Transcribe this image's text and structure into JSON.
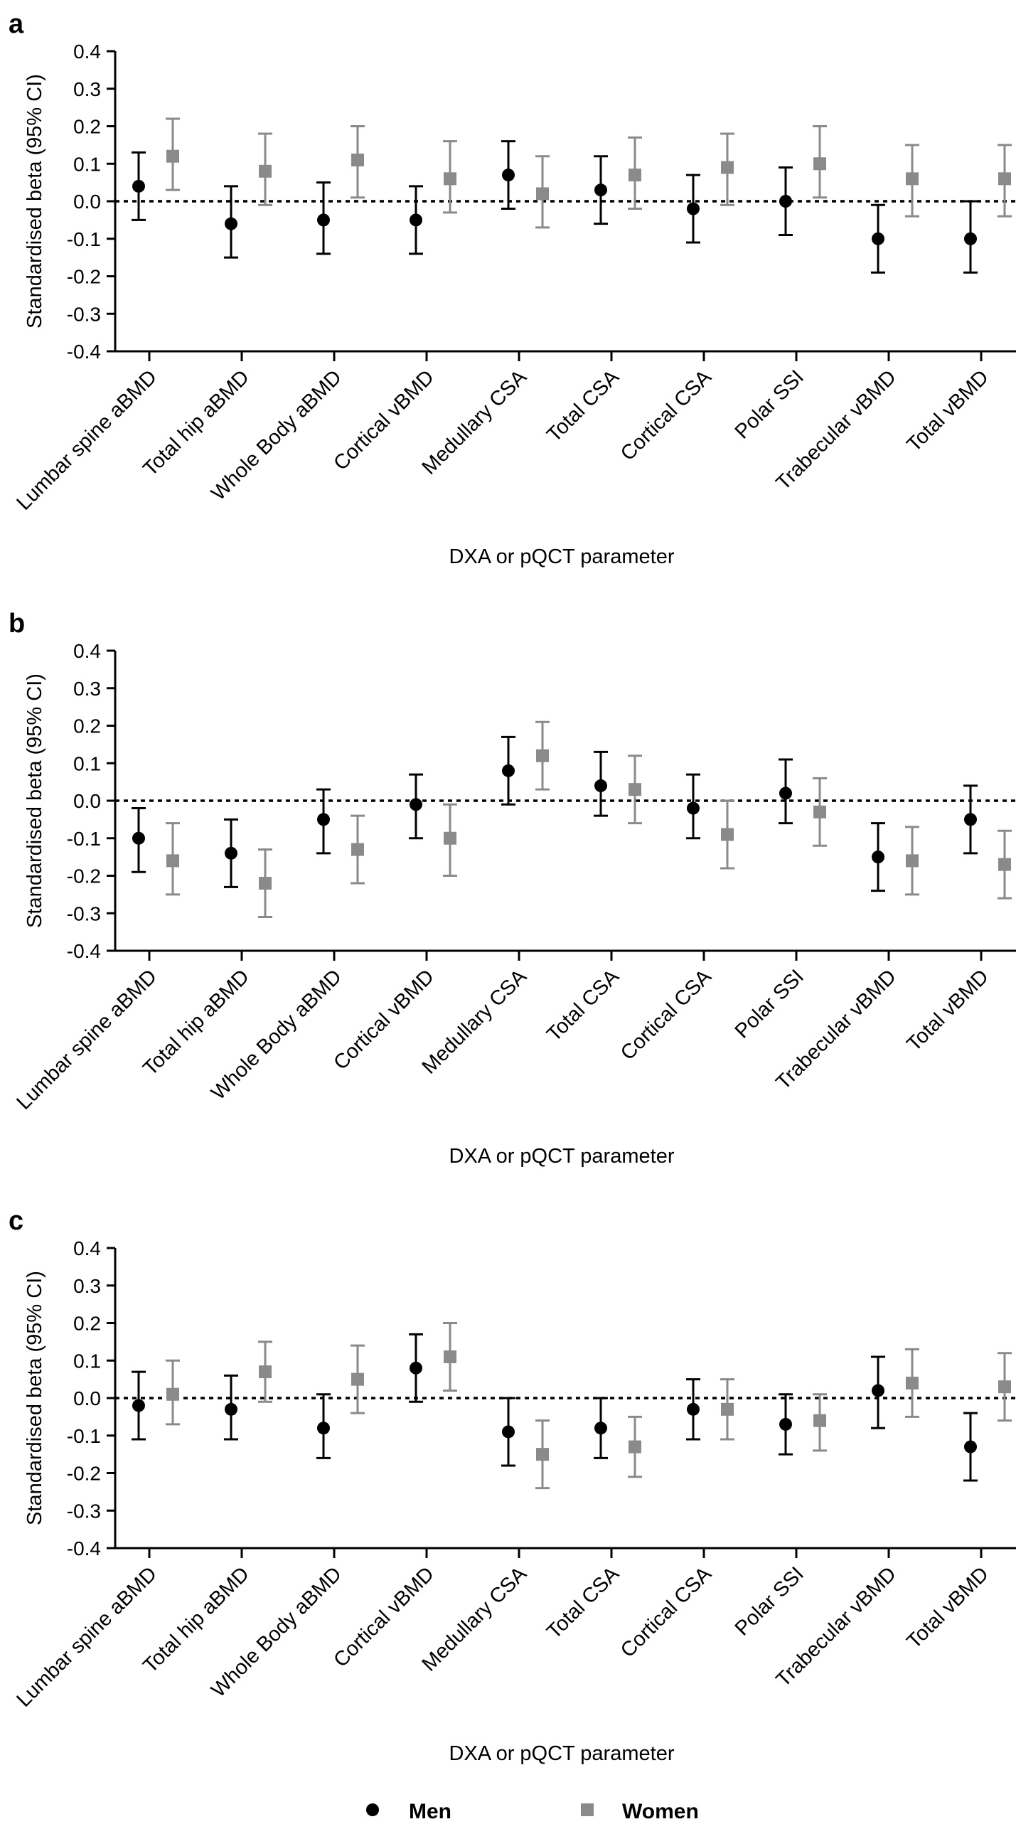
{
  "figure": {
    "legend": [
      {
        "label": "Men",
        "marker": "circle",
        "color": "#000000"
      },
      {
        "label": "Women",
        "marker": "square",
        "color": "#8a8a8a"
      }
    ]
  },
  "chart_data": [
    {
      "panel_label": "a",
      "type": "scatter",
      "xlabel": "DXA or pQCT parameter",
      "ylabel": "Standardised beta (95% CI)",
      "ylim": [
        -0.4,
        0.4
      ],
      "yticks": [
        "0.4",
        "0.3",
        "0.2",
        "0.1",
        "0.0",
        "-0.1",
        "-0.2",
        "-0.3",
        "-0.4"
      ],
      "reference_line": 0.0,
      "categories": [
        "Lumbar spine aBMD",
        "Total hip aBMD",
        "Whole Body aBMD",
        "Cortical vBMD",
        "Medullary CSA",
        "Total CSA",
        "Cortical CSA",
        "Polar SSI",
        "Trabecular vBMD",
        "Total vBMD"
      ],
      "series": [
        {
          "name": "Men",
          "color": "#000000",
          "marker": "circle",
          "values": [
            0.04,
            -0.06,
            -0.05,
            -0.05,
            0.07,
            0.03,
            -0.02,
            0.0,
            -0.1,
            -0.1
          ],
          "ci_low": [
            -0.05,
            -0.15,
            -0.14,
            -0.14,
            -0.02,
            -0.06,
            -0.11,
            -0.09,
            -0.19,
            -0.19
          ],
          "ci_high": [
            0.13,
            0.04,
            0.05,
            0.04,
            0.16,
            0.12,
            0.07,
            0.09,
            -0.01,
            0.0
          ]
        },
        {
          "name": "Women",
          "color": "#8a8a8a",
          "marker": "square",
          "values": [
            0.12,
            0.08,
            0.11,
            0.06,
            0.02,
            0.07,
            0.09,
            0.1,
            0.06,
            0.06
          ],
          "ci_low": [
            0.03,
            -0.01,
            0.01,
            -0.03,
            -0.07,
            -0.02,
            -0.01,
            0.01,
            -0.04,
            -0.04
          ],
          "ci_high": [
            0.22,
            0.18,
            0.2,
            0.16,
            0.12,
            0.17,
            0.18,
            0.2,
            0.15,
            0.15
          ]
        }
      ]
    },
    {
      "panel_label": "b",
      "type": "scatter",
      "xlabel": "DXA or pQCT parameter",
      "ylabel": "Standardised beta (95% CI)",
      "ylim": [
        -0.4,
        0.4
      ],
      "yticks": [
        "0.4",
        "0.3",
        "0.2",
        "0.1",
        "0.0",
        "-0.1",
        "-0.2",
        "-0.3",
        "-0.4"
      ],
      "reference_line": 0.0,
      "categories": [
        "Lumbar spine aBMD",
        "Total hip aBMD",
        "Whole Body aBMD",
        "Cortical vBMD",
        "Medullary CSA",
        "Total CSA",
        "Cortical CSA",
        "Polar SSI",
        "Trabecular vBMD",
        "Total vBMD"
      ],
      "series": [
        {
          "name": "Men",
          "color": "#000000",
          "marker": "circle",
          "values": [
            -0.1,
            -0.14,
            -0.05,
            -0.01,
            0.08,
            0.04,
            -0.02,
            0.02,
            -0.15,
            -0.05
          ],
          "ci_low": [
            -0.19,
            -0.23,
            -0.14,
            -0.1,
            -0.01,
            -0.04,
            -0.1,
            -0.06,
            -0.24,
            -0.14
          ],
          "ci_high": [
            -0.02,
            -0.05,
            0.03,
            0.07,
            0.17,
            0.13,
            0.07,
            0.11,
            -0.06,
            0.04
          ]
        },
        {
          "name": "Women",
          "color": "#8a8a8a",
          "marker": "square",
          "values": [
            -0.16,
            -0.22,
            -0.13,
            -0.1,
            0.12,
            0.03,
            -0.09,
            -0.03,
            -0.16,
            -0.17
          ],
          "ci_low": [
            -0.25,
            -0.31,
            -0.22,
            -0.2,
            0.03,
            -0.06,
            -0.18,
            -0.12,
            -0.25,
            -0.26
          ],
          "ci_high": [
            -0.06,
            -0.13,
            -0.04,
            -0.01,
            0.21,
            0.12,
            0.0,
            0.06,
            -0.07,
            -0.08
          ]
        }
      ]
    },
    {
      "panel_label": "c",
      "type": "scatter",
      "xlabel": "DXA or pQCT parameter",
      "ylabel": "Standardised beta (95% CI)",
      "ylim": [
        -0.4,
        0.4
      ],
      "yticks": [
        "0.4",
        "0.3",
        "0.2",
        "0.1",
        "0.0",
        "-0.1",
        "-0.2",
        "-0.3",
        "-0.4"
      ],
      "reference_line": 0.0,
      "categories": [
        "Lumbar spine aBMD",
        "Total hip aBMD",
        "Whole Body aBMD",
        "Cortical vBMD",
        "Medullary CSA",
        "Total CSA",
        "Cortical CSA",
        "Polar SSI",
        "Trabecular vBMD",
        "Total vBMD"
      ],
      "series": [
        {
          "name": "Men",
          "color": "#000000",
          "marker": "circle",
          "values": [
            -0.02,
            -0.03,
            -0.08,
            0.08,
            -0.09,
            -0.08,
            -0.03,
            -0.07,
            0.02,
            -0.13
          ],
          "ci_low": [
            -0.11,
            -0.11,
            -0.16,
            -0.01,
            -0.18,
            -0.16,
            -0.11,
            -0.15,
            -0.08,
            -0.22
          ],
          "ci_high": [
            0.07,
            0.06,
            0.01,
            0.17,
            0.0,
            0.0,
            0.05,
            0.01,
            0.11,
            -0.04
          ]
        },
        {
          "name": "Women",
          "color": "#8a8a8a",
          "marker": "square",
          "values": [
            0.01,
            0.07,
            0.05,
            0.11,
            -0.15,
            -0.13,
            -0.03,
            -0.06,
            0.04,
            0.03
          ],
          "ci_low": [
            -0.07,
            -0.01,
            -0.04,
            0.02,
            -0.24,
            -0.21,
            -0.11,
            -0.14,
            -0.05,
            -0.06
          ],
          "ci_high": [
            0.1,
            0.15,
            0.14,
            0.2,
            -0.06,
            -0.05,
            0.05,
            0.01,
            0.13,
            0.12
          ]
        }
      ]
    }
  ]
}
